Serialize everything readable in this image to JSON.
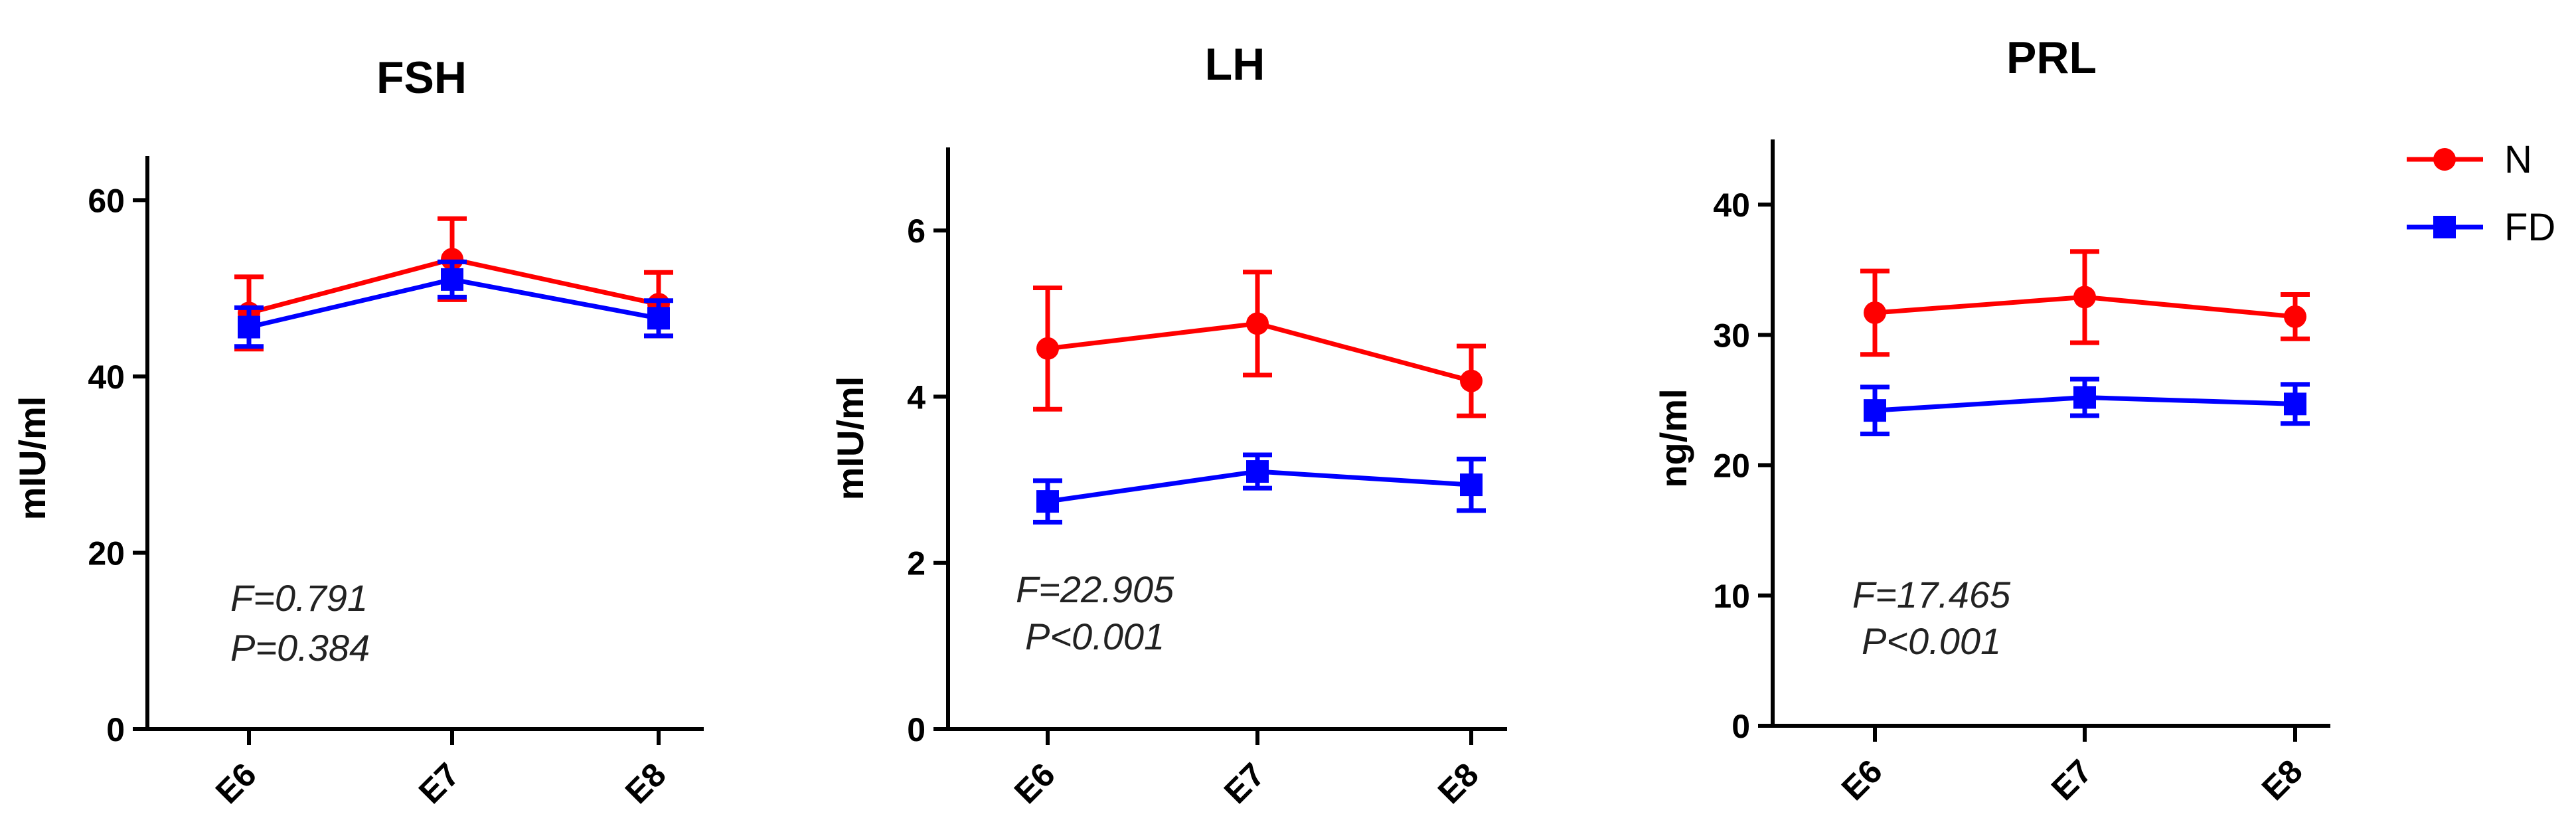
{
  "chart_data": [
    {
      "type": "line",
      "title": "FSH",
      "ylabel": "mIU/ml",
      "categories": [
        "E6",
        "E7",
        "E8"
      ],
      "ylim": [
        0,
        65
      ],
      "yticks": [
        0,
        20,
        40,
        60
      ],
      "series": [
        {
          "name": "N",
          "values": [
            47.2,
            53.3,
            48.2
          ],
          "errors": [
            4.1,
            4.6,
            3.6
          ]
        },
        {
          "name": "FD",
          "values": [
            45.6,
            51.0,
            46.6
          ],
          "errors": [
            2.2,
            2.0,
            2.0
          ]
        }
      ],
      "annotations": [
        "F=0.791",
        "P=0.384"
      ]
    },
    {
      "type": "line",
      "title": "LH",
      "ylabel": "mIU/ml",
      "categories": [
        "E6",
        "E7",
        "E8"
      ],
      "ylim": [
        0,
        7
      ],
      "yticks": [
        0,
        2,
        4,
        6
      ],
      "series": [
        {
          "name": "N",
          "values": [
            4.58,
            4.88,
            4.19
          ],
          "errors": [
            0.73,
            0.62,
            0.42
          ]
        },
        {
          "name": "FD",
          "values": [
            2.74,
            3.1,
            2.94
          ],
          "errors": [
            0.25,
            0.2,
            0.31
          ]
        }
      ],
      "annotations": [
        "F=22.905",
        "P<0.001"
      ]
    },
    {
      "type": "line",
      "title": "PRL",
      "ylabel": "ng/ml",
      "categories": [
        "E6",
        "E7",
        "E8"
      ],
      "ylim": [
        0,
        45
      ],
      "yticks": [
        0,
        10,
        20,
        30,
        40
      ],
      "series": [
        {
          "name": "N",
          "values": [
            31.7,
            32.9,
            31.4
          ],
          "errors": [
            3.2,
            3.5,
            1.7
          ]
        },
        {
          "name": "FD",
          "values": [
            24.2,
            25.2,
            24.7
          ],
          "errors": [
            1.8,
            1.4,
            1.5
          ]
        }
      ],
      "annotations": [
        "F=17.465",
        "P<0.001"
      ]
    }
  ],
  "legend": {
    "placement": "top-right",
    "items": [
      {
        "label": "N",
        "color": "#ff0000",
        "marker": "circle"
      },
      {
        "label": "FD",
        "color": "#0000ff",
        "marker": "square"
      }
    ]
  },
  "colors": {
    "N": "#ff0000",
    "FD": "#0000ff"
  }
}
